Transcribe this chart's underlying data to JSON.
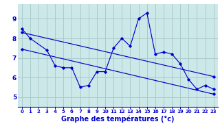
{
  "xlabel": "Graphe des températures (°c)",
  "plot_bg_color": "#cce8e8",
  "fig_bg_color": "#ffffff",
  "grid_color": "#aacccc",
  "line_color": "#0000cc",
  "x_ticks": [
    0,
    1,
    2,
    3,
    4,
    5,
    6,
    7,
    8,
    9,
    10,
    11,
    12,
    13,
    14,
    15,
    16,
    17,
    18,
    19,
    20,
    21,
    22,
    23
  ],
  "y_ticks": [
    5,
    6,
    7,
    8,
    9
  ],
  "ylim": [
    4.5,
    9.75
  ],
  "xlim": [
    -0.5,
    23.5
  ],
  "line1_x": [
    0,
    1,
    3,
    4,
    5,
    6,
    7,
    8,
    9,
    10,
    11,
    12,
    13,
    14,
    15,
    16,
    17,
    18,
    19,
    20,
    21,
    22,
    23
  ],
  "line1_y": [
    8.5,
    8.0,
    7.4,
    6.6,
    6.5,
    6.5,
    5.5,
    5.6,
    6.3,
    6.3,
    7.5,
    8.0,
    7.6,
    9.0,
    9.3,
    7.2,
    7.3,
    7.2,
    6.7,
    5.9,
    5.4,
    5.6,
    5.4
  ],
  "line2_x": [
    0,
    23
  ],
  "line2_y": [
    8.3,
    6.05
  ],
  "line3_x": [
    0,
    23
  ],
  "line3_y": [
    7.45,
    5.15
  ]
}
